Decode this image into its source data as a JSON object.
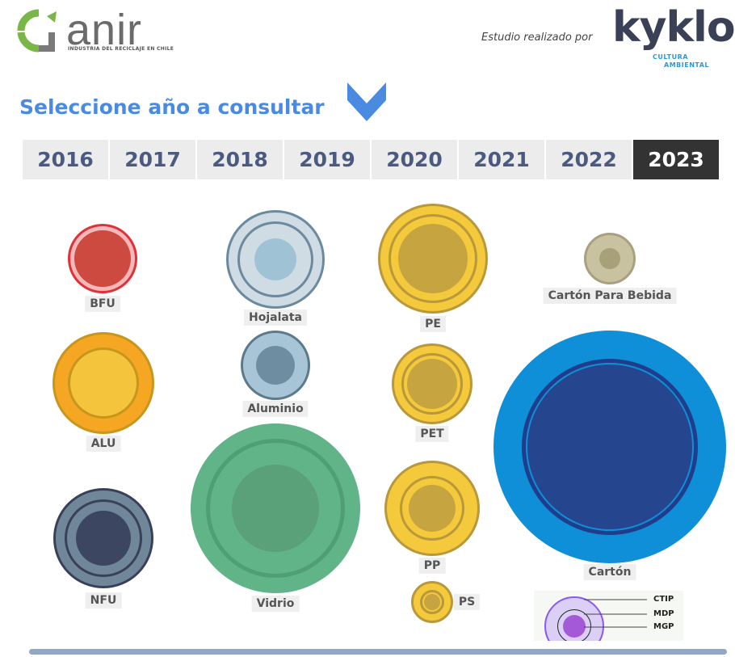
{
  "header": {
    "brand": "anir",
    "brand_subtitle": "INDUSTRIA DEL RECICLAJE EN CHILE",
    "study_label": "Estudio realizado por",
    "partner": "kyklos",
    "partner_sub1": "CULTURA",
    "partner_sub2": "AMBIENTAL"
  },
  "title": "Seleccione año a consultar",
  "title_icon": "chevron-down-icon",
  "years": [
    "2016",
    "2017",
    "2018",
    "2019",
    "2020",
    "2021",
    "2022",
    "2023"
  ],
  "selected_year": "2023",
  "materials": [
    {
      "id": "bfu",
      "label": "BFU",
      "colors": [
        "#f4b8b8",
        "#e0303a",
        "#cc4a40"
      ]
    },
    {
      "id": "hojalata",
      "label": "Hojalata",
      "colors": [
        "#d0dce4",
        "#6b8aa0",
        "#9fc3d4"
      ]
    },
    {
      "id": "pe",
      "label": "PE",
      "colors": [
        "#f4c93c",
        "#b8983a",
        "#c6a540"
      ]
    },
    {
      "id": "carton-bebida",
      "label": "Cartón Para Bebida",
      "colors": [
        "#c8c2a0",
        "#a8a080",
        "#a8a078"
      ]
    },
    {
      "id": "alu",
      "label": "ALU",
      "colors": [
        "#f5a623",
        "#c8961c",
        "#f4c43c"
      ]
    },
    {
      "id": "aluminio",
      "label": "Aluminio",
      "colors": [
        "#a7c5d6",
        "#5d7a8c",
        "#6e8da0"
      ]
    },
    {
      "id": "pet",
      "label": "PET",
      "colors": [
        "#f4c93c",
        "#b8983a",
        "#c6a540"
      ]
    },
    {
      "id": "carton",
      "label": "Cartón",
      "colors": [
        "#0f8fd8",
        "#1f3d8a",
        "#25458f"
      ]
    },
    {
      "id": "nfu",
      "label": "NFU",
      "colors": [
        "#6f8799",
        "#3a405a",
        "#3d4660"
      ]
    },
    {
      "id": "vidrio",
      "label": "Vidrio",
      "colors": [
        "#60b488",
        "#4f9e74",
        "#5aa078"
      ]
    },
    {
      "id": "pp",
      "label": "PP",
      "colors": [
        "#f4c93c",
        "#b8983a",
        "#c6a540"
      ]
    },
    {
      "id": "ps",
      "label": "PS",
      "colors": [
        "#f4c93c",
        "#b8983a",
        "#c6a540"
      ]
    }
  ],
  "legend": {
    "ctip": "CTIP",
    "mdp": "MDP",
    "mgp": "MGP"
  }
}
